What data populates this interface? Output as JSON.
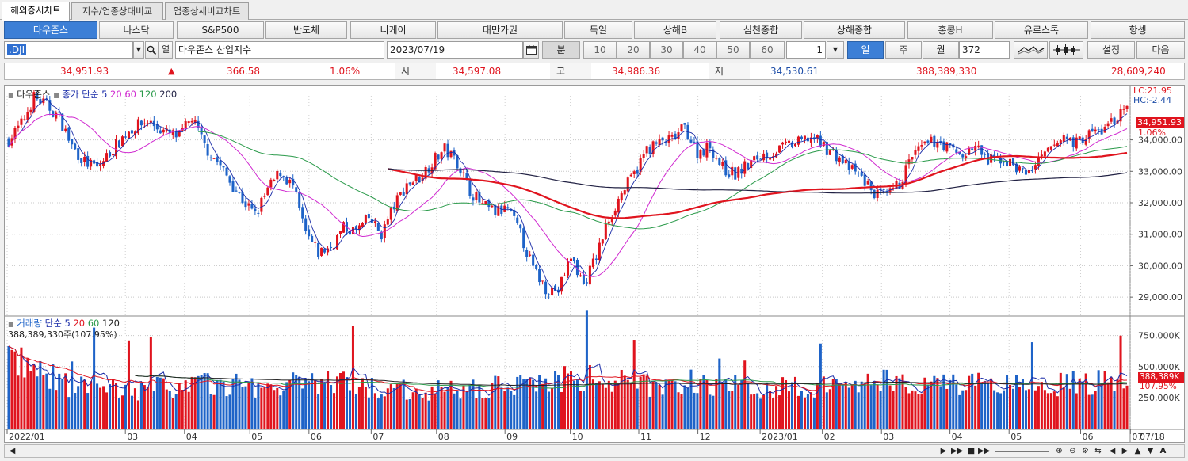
{
  "tabs": [
    "해외증시차트",
    "지수/업종상대비교",
    "업종상세비교차트"
  ],
  "markets": [
    "다우존스",
    "나스닥",
    "S&P500",
    "반도체",
    "니케이",
    "대만가권",
    "독일",
    "상해B",
    "심천종합",
    "상해종합",
    "홍콩H",
    "유로스톡",
    "항셍"
  ],
  "controls": {
    "symbol": ".DJI",
    "lock_label": "열",
    "symbol_name": "다우존스 산업지수",
    "date": "2023/07/19",
    "minute_label": "분",
    "minute_options": [
      "10",
      "20",
      "30",
      "40",
      "50",
      "60"
    ],
    "interval_value": "1",
    "period_buttons": [
      "일",
      "주",
      "월"
    ],
    "count": "372",
    "settings_label": "설정",
    "next_label": "다음"
  },
  "quote": {
    "price": "34,951.93",
    "change_arrow": "▲",
    "change": "366.58",
    "change_pct": "1.06%",
    "open_label": "시",
    "open": "34,597.08",
    "high_label": "고",
    "high": "34,986.36",
    "low_label": "저",
    "low": "34,530.61",
    "volume": "388,389,330",
    "amount": "28,609,240"
  },
  "price_panel": {
    "legend_name": "다우존스",
    "legend_ma": "종가 단순",
    "ma_periods": [
      "5",
      "20",
      "60",
      "120",
      "200"
    ],
    "lc": "LC:21.95",
    "hc": "HC:-2.44",
    "last_price_tag": "34,951.93",
    "last_pct_tag": "1.06%",
    "y_ticks": [
      "34,000.00",
      "33,000.00",
      "32,000.00",
      "31,000.00",
      "30,000.00",
      "29,000.00"
    ]
  },
  "volume_panel": {
    "legend_name": "거래량",
    "legend_ma": "단순",
    "ma_periods": [
      "5",
      "20",
      "60",
      "120"
    ],
    "sub_label": "388,389,330주(107.95%)",
    "y_ticks": [
      "750,000K",
      "500,000K",
      "250,000K"
    ],
    "last_vol_tag": "388,389K",
    "last_pct_tag": "107.95%"
  },
  "x_labels": [
    "2022/01",
    "03",
    "04",
    "05",
    "06",
    "07",
    "08",
    "09",
    "10",
    "11",
    "12",
    "2023/01",
    "02",
    "03",
    "04",
    "05",
    "06",
    "07"
  ],
  "x_cursor_label": "07/18",
  "colors": {
    "up": "#e0141e",
    "down": "#1e63c8",
    "ma5": "#1a2ca8",
    "ma20": "#d02ad0",
    "ma60": "#2a9a4a",
    "ma120": "#e0141e",
    "ma200": "#222244",
    "active_blue": "#3c7fd6"
  },
  "chart_data": {
    "type": "candlestick",
    "x_start": "2022/01",
    "x_end": "2023/07/19",
    "ylim": [
      28500,
      35100
    ],
    "volume_ylim": [
      0,
      850000000
    ],
    "close_path": [
      [
        0,
        34000
      ],
      [
        4,
        34500
      ],
      [
        8,
        35350
      ],
      [
        12,
        35100
      ],
      [
        16,
        34700
      ],
      [
        20,
        33800
      ],
      [
        24,
        33300
      ],
      [
        28,
        33100
      ],
      [
        32,
        33600
      ],
      [
        38,
        34300
      ],
      [
        44,
        34600
      ],
      [
        50,
        34200
      ],
      [
        54,
        34100
      ],
      [
        58,
        34700
      ],
      [
        62,
        33800
      ],
      [
        66,
        33300
      ],
      [
        70,
        32700
      ],
      [
        74,
        32100
      ],
      [
        78,
        31600
      ],
      [
        82,
        32400
      ],
      [
        86,
        33000
      ],
      [
        90,
        32500
      ],
      [
        94,
        31000
      ],
      [
        98,
        30400
      ],
      [
        102,
        30600
      ],
      [
        106,
        31200
      ],
      [
        110,
        31100
      ],
      [
        114,
        31500
      ],
      [
        118,
        31000
      ],
      [
        122,
        31900
      ],
      [
        126,
        32600
      ],
      [
        130,
        32800
      ],
      [
        134,
        33300
      ],
      [
        138,
        33700
      ],
      [
        142,
        33300
      ],
      [
        146,
        32400
      ],
      [
        150,
        31900
      ],
      [
        154,
        31700
      ],
      [
        158,
        31800
      ],
      [
        162,
        31000
      ],
      [
        166,
        29900
      ],
      [
        170,
        29300
      ],
      [
        174,
        29200
      ],
      [
        178,
        30300
      ],
      [
        182,
        29400
      ],
      [
        186,
        30300
      ],
      [
        190,
        31500
      ],
      [
        194,
        32300
      ],
      [
        198,
        32900
      ],
      [
        202,
        33700
      ],
      [
        206,
        33900
      ],
      [
        210,
        34000
      ],
      [
        214,
        34400
      ],
      [
        218,
        33600
      ],
      [
        222,
        33800
      ],
      [
        226,
        33100
      ],
      [
        230,
        32900
      ],
      [
        234,
        33200
      ],
      [
        238,
        33500
      ],
      [
        242,
        33600
      ],
      [
        246,
        33800
      ],
      [
        250,
        33900
      ],
      [
        254,
        34100
      ],
      [
        258,
        33800
      ],
      [
        262,
        33500
      ],
      [
        266,
        33100
      ],
      [
        270,
        32800
      ],
      [
        274,
        32300
      ],
      [
        278,
        32200
      ],
      [
        282,
        32600
      ],
      [
        286,
        33500
      ],
      [
        290,
        33800
      ],
      [
        294,
        34000
      ],
      [
        298,
        33700
      ],
      [
        302,
        33500
      ],
      [
        306,
        33800
      ],
      [
        310,
        33300
      ],
      [
        314,
        33400
      ],
      [
        318,
        33200
      ],
      [
        322,
        32900
      ],
      [
        326,
        33300
      ],
      [
        330,
        33700
      ],
      [
        334,
        34100
      ],
      [
        338,
        33900
      ],
      [
        342,
        34200
      ],
      [
        346,
        34300
      ],
      [
        350,
        34650
      ],
      [
        354,
        34950
      ]
    ],
    "volume_profile": [
      [
        0,
        560
      ],
      [
        10,
        420
      ],
      [
        20,
        330
      ],
      [
        40,
        300
      ],
      [
        60,
        340
      ],
      [
        80,
        320
      ],
      [
        100,
        360
      ],
      [
        120,
        300
      ],
      [
        140,
        290
      ],
      [
        160,
        340
      ],
      [
        180,
        390
      ],
      [
        200,
        340
      ],
      [
        220,
        330
      ],
      [
        240,
        310
      ],
      [
        260,
        320
      ],
      [
        280,
        380
      ],
      [
        300,
        340
      ],
      [
        320,
        330
      ],
      [
        340,
        350
      ],
      [
        354,
        388
      ]
    ],
    "ma_series": [
      "5",
      "20",
      "60",
      "120",
      "200"
    ]
  }
}
